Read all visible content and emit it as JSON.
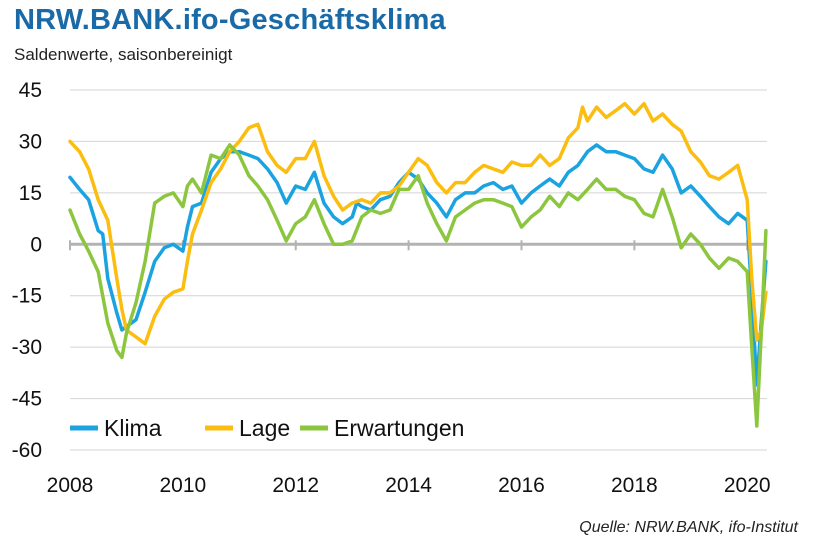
{
  "title": "NRW.BANK.ifo-Geschäftsklima",
  "subtitle": "Saldenwerte, saisonbereinigt",
  "source": "Quelle: NRW.BANK, ifo-Institut",
  "colors": {
    "Klima": "#1aa3e0",
    "Lage": "#fbbd0f",
    "Erwartungen": "#8cc63f",
    "grid": "#d4d4d4",
    "zero": "#b3b3b3"
  },
  "chart_data": {
    "type": "line",
    "title": "NRW.BANK.ifo-Geschäftsklima",
    "subtitle": "Saldenwerte, saisonbereinigt",
    "xlabel": "",
    "ylabel": "",
    "ylim": [
      -60,
      45
    ],
    "yticks": [
      45,
      30,
      15,
      0,
      -15,
      -30,
      -45,
      -60
    ],
    "ytick_labels": [
      "45",
      "30",
      "15",
      "0",
      "-15",
      "-30",
      "-45",
      "-60"
    ],
    "xlim": [
      2008.0,
      2020.35
    ],
    "xticks": [
      2008,
      2010,
      2012,
      2014,
      2016,
      2018,
      2020
    ],
    "xtick_labels": [
      "2008",
      "2010",
      "2012",
      "2014",
      "2016",
      "2018",
      "2020"
    ],
    "grid": "horizontal",
    "legend": "bottom-left",
    "series": [
      {
        "name": "Klima",
        "points": [
          [
            2008.0,
            19.5
          ],
          [
            2008.17,
            16
          ],
          [
            2008.33,
            13
          ],
          [
            2008.5,
            4
          ],
          [
            2008.58,
            3
          ],
          [
            2008.67,
            -10
          ],
          [
            2008.83,
            -20
          ],
          [
            2008.92,
            -25
          ],
          [
            2009.0,
            -24
          ],
          [
            2009.17,
            -22
          ],
          [
            2009.33,
            -14
          ],
          [
            2009.5,
            -5
          ],
          [
            2009.67,
            -1
          ],
          [
            2009.83,
            0
          ],
          [
            2010.0,
            -2
          ],
          [
            2010.08,
            5
          ],
          [
            2010.17,
            11
          ],
          [
            2010.33,
            12
          ],
          [
            2010.5,
            21
          ],
          [
            2010.67,
            25
          ],
          [
            2010.83,
            27
          ],
          [
            2011.0,
            27
          ],
          [
            2011.17,
            26
          ],
          [
            2011.33,
            25
          ],
          [
            2011.5,
            22
          ],
          [
            2011.67,
            18
          ],
          [
            2011.83,
            12
          ],
          [
            2012.0,
            17
          ],
          [
            2012.17,
            16
          ],
          [
            2012.33,
            21
          ],
          [
            2012.5,
            12
          ],
          [
            2012.67,
            8
          ],
          [
            2012.83,
            6
          ],
          [
            2013.0,
            8
          ],
          [
            2013.08,
            12
          ],
          [
            2013.17,
            11
          ],
          [
            2013.33,
            10
          ],
          [
            2013.5,
            13
          ],
          [
            2013.67,
            14
          ],
          [
            2013.83,
            18
          ],
          [
            2014.0,
            21
          ],
          [
            2014.17,
            19
          ],
          [
            2014.33,
            15
          ],
          [
            2014.5,
            12
          ],
          [
            2014.67,
            8
          ],
          [
            2014.83,
            13
          ],
          [
            2015.0,
            15
          ],
          [
            2015.17,
            15
          ],
          [
            2015.33,
            17
          ],
          [
            2015.5,
            18
          ],
          [
            2015.67,
            16
          ],
          [
            2015.83,
            17
          ],
          [
            2016.0,
            12
          ],
          [
            2016.17,
            15
          ],
          [
            2016.33,
            17
          ],
          [
            2016.5,
            19
          ],
          [
            2016.67,
            17
          ],
          [
            2016.83,
            21
          ],
          [
            2017.0,
            23
          ],
          [
            2017.17,
            27
          ],
          [
            2017.33,
            29
          ],
          [
            2017.5,
            27
          ],
          [
            2017.67,
            27
          ],
          [
            2017.83,
            26
          ],
          [
            2018.0,
            25
          ],
          [
            2018.17,
            22
          ],
          [
            2018.33,
            21
          ],
          [
            2018.5,
            26
          ],
          [
            2018.67,
            22
          ],
          [
            2018.83,
            15
          ],
          [
            2019.0,
            17
          ],
          [
            2019.17,
            14
          ],
          [
            2019.33,
            11
          ],
          [
            2019.5,
            8
          ],
          [
            2019.67,
            6
          ],
          [
            2019.83,
            9
          ],
          [
            2020.0,
            7
          ],
          [
            2020.08,
            -15
          ],
          [
            2020.17,
            -41
          ],
          [
            2020.25,
            -22
          ],
          [
            2020.33,
            -5
          ]
        ]
      },
      {
        "name": "Lage",
        "points": [
          [
            2008.0,
            30
          ],
          [
            2008.17,
            27
          ],
          [
            2008.33,
            22
          ],
          [
            2008.5,
            13
          ],
          [
            2008.67,
            7
          ],
          [
            2008.83,
            -10
          ],
          [
            2008.92,
            -19
          ],
          [
            2009.0,
            -25
          ],
          [
            2009.17,
            -27
          ],
          [
            2009.33,
            -29
          ],
          [
            2009.5,
            -21
          ],
          [
            2009.67,
            -16
          ],
          [
            2009.83,
            -14
          ],
          [
            2010.0,
            -13
          ],
          [
            2010.08,
            -5
          ],
          [
            2010.17,
            3
          ],
          [
            2010.33,
            10
          ],
          [
            2010.5,
            18
          ],
          [
            2010.67,
            22
          ],
          [
            2010.83,
            27
          ],
          [
            2011.0,
            30
          ],
          [
            2011.17,
            34
          ],
          [
            2011.33,
            35
          ],
          [
            2011.5,
            27
          ],
          [
            2011.67,
            23
          ],
          [
            2011.83,
            21
          ],
          [
            2012.0,
            25
          ],
          [
            2012.17,
            25
          ],
          [
            2012.33,
            30
          ],
          [
            2012.5,
            20
          ],
          [
            2012.67,
            14
          ],
          [
            2012.83,
            10
          ],
          [
            2013.0,
            12
          ],
          [
            2013.17,
            13
          ],
          [
            2013.33,
            12
          ],
          [
            2013.5,
            15
          ],
          [
            2013.67,
            15
          ],
          [
            2013.83,
            17
          ],
          [
            2014.0,
            21
          ],
          [
            2014.17,
            25
          ],
          [
            2014.33,
            23
          ],
          [
            2014.5,
            18
          ],
          [
            2014.67,
            15
          ],
          [
            2014.83,
            18
          ],
          [
            2015.0,
            18
          ],
          [
            2015.17,
            21
          ],
          [
            2015.33,
            23
          ],
          [
            2015.5,
            22
          ],
          [
            2015.67,
            21
          ],
          [
            2015.83,
            24
          ],
          [
            2016.0,
            23
          ],
          [
            2016.17,
            23
          ],
          [
            2016.33,
            26
          ],
          [
            2016.5,
            23
          ],
          [
            2016.67,
            25
          ],
          [
            2016.83,
            31
          ],
          [
            2017.0,
            34
          ],
          [
            2017.08,
            40
          ],
          [
            2017.17,
            36
          ],
          [
            2017.33,
            40
          ],
          [
            2017.5,
            37
          ],
          [
            2017.67,
            39
          ],
          [
            2017.83,
            41
          ],
          [
            2018.0,
            38
          ],
          [
            2018.17,
            41
          ],
          [
            2018.33,
            36
          ],
          [
            2018.5,
            38
          ],
          [
            2018.67,
            35
          ],
          [
            2018.83,
            33
          ],
          [
            2019.0,
            27
          ],
          [
            2019.17,
            24
          ],
          [
            2019.33,
            20
          ],
          [
            2019.5,
            19
          ],
          [
            2019.67,
            21
          ],
          [
            2019.83,
            23
          ],
          [
            2020.0,
            13
          ],
          [
            2020.08,
            -10
          ],
          [
            2020.17,
            -28
          ],
          [
            2020.25,
            -25
          ],
          [
            2020.33,
            -14
          ]
        ]
      },
      {
        "name": "Erwartungen",
        "points": [
          [
            2008.0,
            10
          ],
          [
            2008.17,
            3
          ],
          [
            2008.33,
            -2
          ],
          [
            2008.5,
            -8
          ],
          [
            2008.67,
            -23
          ],
          [
            2008.83,
            -31
          ],
          [
            2008.92,
            -33
          ],
          [
            2009.0,
            -26
          ],
          [
            2009.17,
            -17
          ],
          [
            2009.33,
            -5
          ],
          [
            2009.5,
            12
          ],
          [
            2009.67,
            14
          ],
          [
            2009.83,
            15
          ],
          [
            2010.0,
            11
          ],
          [
            2010.08,
            17
          ],
          [
            2010.17,
            19
          ],
          [
            2010.33,
            15
          ],
          [
            2010.5,
            26
          ],
          [
            2010.67,
            25
          ],
          [
            2010.83,
            29
          ],
          [
            2011.0,
            26
          ],
          [
            2011.17,
            20
          ],
          [
            2011.33,
            17
          ],
          [
            2011.5,
            13
          ],
          [
            2011.67,
            7
          ],
          [
            2011.83,
            1
          ],
          [
            2012.0,
            6
          ],
          [
            2012.17,
            8
          ],
          [
            2012.33,
            13
          ],
          [
            2012.5,
            6
          ],
          [
            2012.67,
            0
          ],
          [
            2012.83,
            0
          ],
          [
            2013.0,
            1
          ],
          [
            2013.17,
            8
          ],
          [
            2013.33,
            10
          ],
          [
            2013.5,
            9
          ],
          [
            2013.67,
            10
          ],
          [
            2013.83,
            16
          ],
          [
            2014.0,
            16
          ],
          [
            2014.17,
            20
          ],
          [
            2014.33,
            12
          ],
          [
            2014.5,
            6
          ],
          [
            2014.67,
            1
          ],
          [
            2014.83,
            8
          ],
          [
            2015.0,
            10
          ],
          [
            2015.17,
            12
          ],
          [
            2015.33,
            13
          ],
          [
            2015.5,
            13
          ],
          [
            2015.67,
            12
          ],
          [
            2015.83,
            11
          ],
          [
            2016.0,
            5
          ],
          [
            2016.17,
            8
          ],
          [
            2016.33,
            10
          ],
          [
            2016.5,
            14
          ],
          [
            2016.67,
            11
          ],
          [
            2016.83,
            15
          ],
          [
            2017.0,
            13
          ],
          [
            2017.17,
            16
          ],
          [
            2017.33,
            19
          ],
          [
            2017.5,
            16
          ],
          [
            2017.67,
            16
          ],
          [
            2017.83,
            14
          ],
          [
            2018.0,
            13
          ],
          [
            2018.17,
            9
          ],
          [
            2018.33,
            8
          ],
          [
            2018.5,
            16
          ],
          [
            2018.67,
            8
          ],
          [
            2018.83,
            -1
          ],
          [
            2019.0,
            3
          ],
          [
            2019.17,
            0
          ],
          [
            2019.33,
            -4
          ],
          [
            2019.5,
            -7
          ],
          [
            2019.67,
            -4
          ],
          [
            2019.83,
            -5
          ],
          [
            2020.0,
            -8
          ],
          [
            2020.08,
            -30
          ],
          [
            2020.17,
            -53
          ],
          [
            2020.25,
            -25
          ],
          [
            2020.33,
            4
          ]
        ]
      }
    ]
  }
}
